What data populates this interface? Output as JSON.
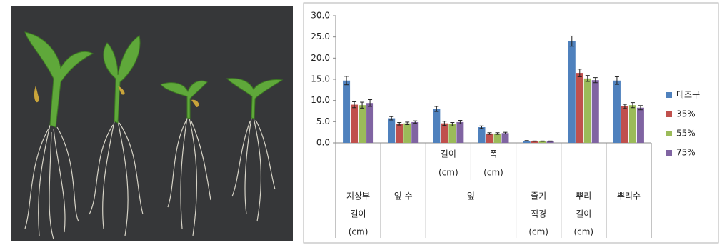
{
  "chart_data": {
    "type": "bar",
    "categories": [
      [
        "지상부",
        "길이",
        "(cm)"
      ],
      [
        "잎 수"
      ],
      [
        "길이",
        "(cm)"
      ],
      [
        "폭",
        "(cm)"
      ],
      [
        "줄기",
        "직경",
        "(cm)"
      ],
      [
        "뿌리",
        "길이",
        "(cm)"
      ],
      [
        "뿌리수"
      ]
    ],
    "category_groups": [
      {
        "label": "잎",
        "categories": [
          2,
          3
        ]
      }
    ],
    "series": [
      {
        "name": "대조구",
        "color": "#4f81bd",
        "values": [
          14.7,
          5.8,
          8.0,
          3.7,
          0.5,
          24.0,
          14.7
        ],
        "errors": [
          1.0,
          0.4,
          0.6,
          0.3,
          0.05,
          1.2,
          0.9
        ]
      },
      {
        "name": "35%",
        "color": "#c0504d",
        "values": [
          9.0,
          4.5,
          4.6,
          2.2,
          0.4,
          16.5,
          8.6
        ],
        "errors": [
          0.7,
          0.3,
          0.5,
          0.2,
          0.05,
          0.9,
          0.5
        ]
      },
      {
        "name": "55%",
        "color": "#9bbb59",
        "values": [
          8.9,
          4.6,
          4.4,
          2.2,
          0.4,
          15.2,
          8.9
        ],
        "errors": [
          0.7,
          0.3,
          0.4,
          0.2,
          0.05,
          0.7,
          0.6
        ]
      },
      {
        "name": "75%",
        "color": "#8064a2",
        "values": [
          9.4,
          4.9,
          4.9,
          2.3,
          0.4,
          14.8,
          8.3
        ],
        "errors": [
          0.8,
          0.3,
          0.4,
          0.2,
          0.05,
          0.6,
          0.5
        ]
      }
    ],
    "ylim": [
      0,
      30
    ],
    "yticks": [
      {
        "value": 0,
        "label": "0.0"
      },
      {
        "value": 5,
        "label": "5.0"
      },
      {
        "value": 10,
        "label": "10.0"
      },
      {
        "value": 15,
        "label": "15.0"
      },
      {
        "value": 20,
        "label": "20.0"
      },
      {
        "value": 25,
        "label": "25.0"
      },
      {
        "value": 30,
        "label": "30.0"
      }
    ],
    "legend": "right"
  }
}
